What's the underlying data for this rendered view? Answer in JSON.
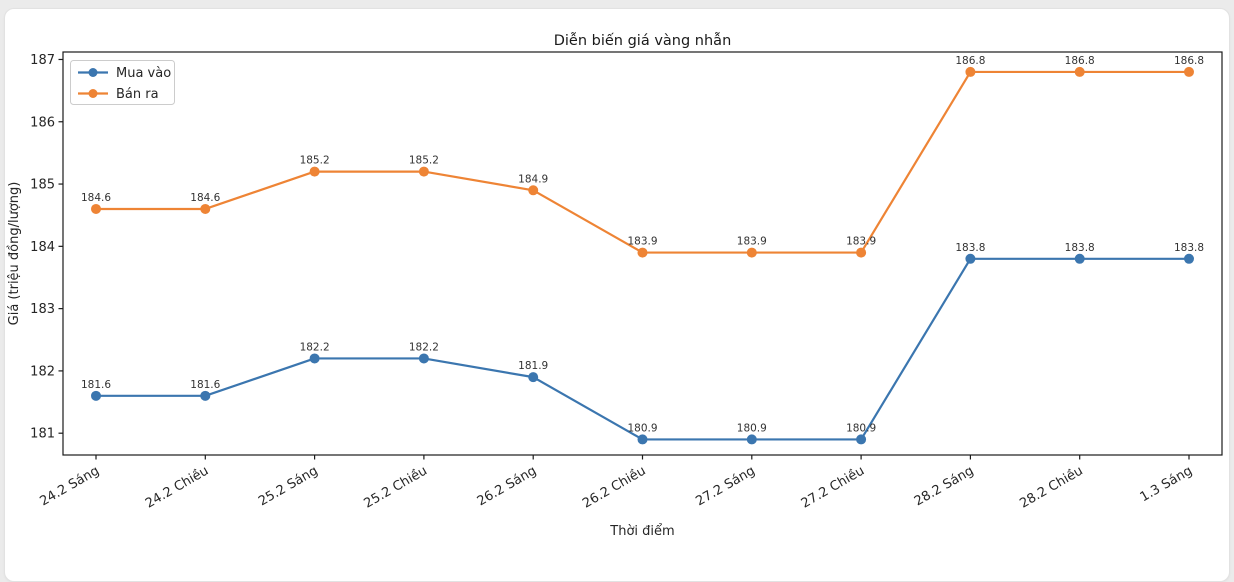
{
  "page": {
    "background_color": "#ebebeb",
    "card_background_color": "#ffffff",
    "card_border_color": "#e2e2e2"
  },
  "chart_data": {
    "type": "line",
    "title": "Diễn biến giá vàng nhẫn",
    "xlabel": "Thời điểm",
    "ylabel": "Giá (triệu đồng/lượng)",
    "categories": [
      "24.2 Sáng",
      "24.2 Chiều",
      "25.2 Sáng",
      "25.2 Chiều",
      "26.2 Sáng",
      "26.2 Chiều",
      "27.2 Sáng",
      "27.2 Chiều",
      "28.2 Sáng",
      "28.2 Chiều",
      "1.3 Sáng"
    ],
    "series": [
      {
        "name": "Mua vào",
        "color": "#3b76af",
        "values": [
          181.6,
          181.6,
          182.2,
          182.2,
          181.9,
          180.9,
          180.9,
          180.9,
          183.8,
          183.8,
          183.8
        ]
      },
      {
        "name": "Bán ra",
        "color": "#ee8435",
        "values": [
          184.6,
          184.6,
          185.2,
          185.2,
          184.9,
          183.9,
          183.9,
          183.9,
          186.8,
          186.8,
          186.8
        ]
      }
    ],
    "yticks": [
      181,
      182,
      183,
      184,
      185,
      186,
      187
    ],
    "ylim": [
      180.65,
      187.12
    ],
    "legend_position": "upper left",
    "grid": false,
    "marker": "circle",
    "data_labels": true,
    "axis_color": "#1a1a1a",
    "tick_label_color": "#262626",
    "data_label_color": "#333333"
  }
}
